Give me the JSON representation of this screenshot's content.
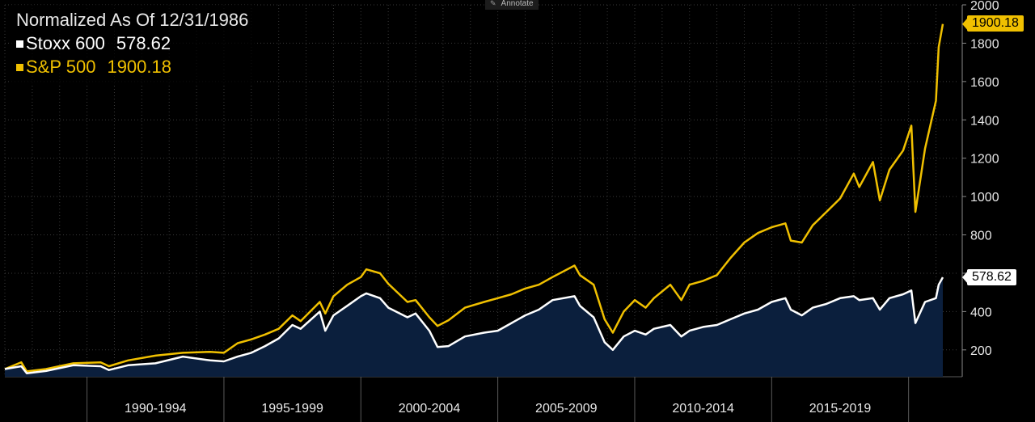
{
  "legend": {
    "title": "Normalized As Of 12/31/1986",
    "series": [
      {
        "name": "Stoxx 600",
        "last": "578.62",
        "color": "#ffffff"
      },
      {
        "name": "S&P 500",
        "last": "1900.18",
        "color": "#f0c000"
      }
    ]
  },
  "toolbar": {
    "annotate_label": "Annotate",
    "annotate_icon": "pencil-icon"
  },
  "colors": {
    "background": "#000000",
    "stoxx_area": "#0b1f3d",
    "grid": "#3a3a3a",
    "axis_text": "#e8e8e8"
  },
  "chart_data": {
    "type": "line",
    "title": "Normalized As Of 12/31/1986",
    "xlabel": "",
    "ylabel": "",
    "x_periods": [
      "1990-1994",
      "1995-1999",
      "2000-2004",
      "2005-2009",
      "2010-2014",
      "2015-2019"
    ],
    "yticks": [
      200,
      400,
      600,
      800,
      1000,
      1200,
      1400,
      1600,
      1800,
      2000
    ],
    "ylim": [
      60,
      2000
    ],
    "xlim": [
      1987.0,
      2021.25
    ],
    "grid": true,
    "legend_position": "top-left",
    "series": [
      {
        "name": "S&P 500",
        "color": "#f0c000",
        "last_value": 1900.18,
        "points": [
          [
            1987.0,
            100
          ],
          [
            1987.6,
            135
          ],
          [
            1987.8,
            88
          ],
          [
            1988.5,
            100
          ],
          [
            1989.5,
            130
          ],
          [
            1990.5,
            135
          ],
          [
            1990.8,
            115
          ],
          [
            1991.5,
            145
          ],
          [
            1992.5,
            170
          ],
          [
            1993.5,
            185
          ],
          [
            1994.5,
            190
          ],
          [
            1995.0,
            185
          ],
          [
            1995.5,
            235
          ],
          [
            1996.0,
            255
          ],
          [
            1996.5,
            280
          ],
          [
            1997.0,
            310
          ],
          [
            1997.5,
            380
          ],
          [
            1997.8,
            350
          ],
          [
            1998.5,
            450
          ],
          [
            1998.7,
            390
          ],
          [
            1999.0,
            480
          ],
          [
            1999.5,
            540
          ],
          [
            2000.0,
            580
          ],
          [
            2000.2,
            620
          ],
          [
            2000.7,
            600
          ],
          [
            2001.0,
            545
          ],
          [
            2001.7,
            450
          ],
          [
            2002.0,
            460
          ],
          [
            2002.5,
            370
          ],
          [
            2002.8,
            325
          ],
          [
            2003.2,
            355
          ],
          [
            2003.8,
            420
          ],
          [
            2004.5,
            450
          ],
          [
            2005.0,
            470
          ],
          [
            2005.5,
            490
          ],
          [
            2006.0,
            520
          ],
          [
            2006.5,
            540
          ],
          [
            2007.0,
            580
          ],
          [
            2007.8,
            640
          ],
          [
            2008.0,
            590
          ],
          [
            2008.5,
            540
          ],
          [
            2008.9,
            360
          ],
          [
            2009.2,
            290
          ],
          [
            2009.6,
            400
          ],
          [
            2010.0,
            460
          ],
          [
            2010.4,
            420
          ],
          [
            2010.7,
            470
          ],
          [
            2011.3,
            540
          ],
          [
            2011.7,
            460
          ],
          [
            2012.0,
            540
          ],
          [
            2012.5,
            560
          ],
          [
            2013.0,
            590
          ],
          [
            2013.5,
            680
          ],
          [
            2014.0,
            760
          ],
          [
            2014.5,
            810
          ],
          [
            2015.0,
            840
          ],
          [
            2015.5,
            860
          ],
          [
            2015.7,
            770
          ],
          [
            2016.1,
            760
          ],
          [
            2016.5,
            850
          ],
          [
            2017.0,
            920
          ],
          [
            2017.5,
            990
          ],
          [
            2018.0,
            1120
          ],
          [
            2018.2,
            1050
          ],
          [
            2018.7,
            1180
          ],
          [
            2018.95,
            980
          ],
          [
            2019.3,
            1140
          ],
          [
            2019.8,
            1240
          ],
          [
            2020.1,
            1370
          ],
          [
            2020.25,
            920
          ],
          [
            2020.6,
            1250
          ],
          [
            2021.0,
            1500
          ],
          [
            2021.1,
            1780
          ],
          [
            2021.25,
            1900
          ]
        ]
      },
      {
        "name": "Stoxx 600",
        "color": "#ffffff",
        "last_value": 578.62,
        "points": [
          [
            1987.0,
            100
          ],
          [
            1987.6,
            115
          ],
          [
            1987.8,
            78
          ],
          [
            1988.5,
            90
          ],
          [
            1989.5,
            120
          ],
          [
            1990.5,
            115
          ],
          [
            1990.8,
            95
          ],
          [
            1991.5,
            120
          ],
          [
            1992.5,
            130
          ],
          [
            1993.5,
            165
          ],
          [
            1994.5,
            145
          ],
          [
            1995.0,
            140
          ],
          [
            1995.5,
            165
          ],
          [
            1996.0,
            185
          ],
          [
            1996.5,
            220
          ],
          [
            1997.0,
            260
          ],
          [
            1997.5,
            330
          ],
          [
            1997.8,
            310
          ],
          [
            1998.5,
            400
          ],
          [
            1998.7,
            300
          ],
          [
            1999.0,
            380
          ],
          [
            1999.5,
            430
          ],
          [
            2000.0,
            480
          ],
          [
            2000.2,
            495
          ],
          [
            2000.7,
            470
          ],
          [
            2001.0,
            420
          ],
          [
            2001.7,
            370
          ],
          [
            2002.0,
            390
          ],
          [
            2002.5,
            300
          ],
          [
            2002.8,
            215
          ],
          [
            2003.2,
            220
          ],
          [
            2003.8,
            270
          ],
          [
            2004.5,
            290
          ],
          [
            2005.0,
            300
          ],
          [
            2005.5,
            340
          ],
          [
            2006.0,
            380
          ],
          [
            2006.5,
            410
          ],
          [
            2007.0,
            460
          ],
          [
            2007.8,
            480
          ],
          [
            2008.0,
            430
          ],
          [
            2008.5,
            370
          ],
          [
            2008.9,
            240
          ],
          [
            2009.2,
            200
          ],
          [
            2009.6,
            270
          ],
          [
            2010.0,
            300
          ],
          [
            2010.4,
            280
          ],
          [
            2010.7,
            310
          ],
          [
            2011.3,
            330
          ],
          [
            2011.7,
            270
          ],
          [
            2012.0,
            300
          ],
          [
            2012.5,
            320
          ],
          [
            2013.0,
            330
          ],
          [
            2013.5,
            360
          ],
          [
            2014.0,
            390
          ],
          [
            2014.5,
            410
          ],
          [
            2015.0,
            450
          ],
          [
            2015.5,
            470
          ],
          [
            2015.7,
            410
          ],
          [
            2016.1,
            380
          ],
          [
            2016.5,
            420
          ],
          [
            2017.0,
            440
          ],
          [
            2017.5,
            470
          ],
          [
            2018.0,
            480
          ],
          [
            2018.2,
            460
          ],
          [
            2018.7,
            470
          ],
          [
            2018.95,
            410
          ],
          [
            2019.3,
            470
          ],
          [
            2019.8,
            490
          ],
          [
            2020.1,
            510
          ],
          [
            2020.25,
            340
          ],
          [
            2020.6,
            450
          ],
          [
            2021.0,
            470
          ],
          [
            2021.1,
            540
          ],
          [
            2021.25,
            578.62
          ]
        ]
      }
    ]
  }
}
